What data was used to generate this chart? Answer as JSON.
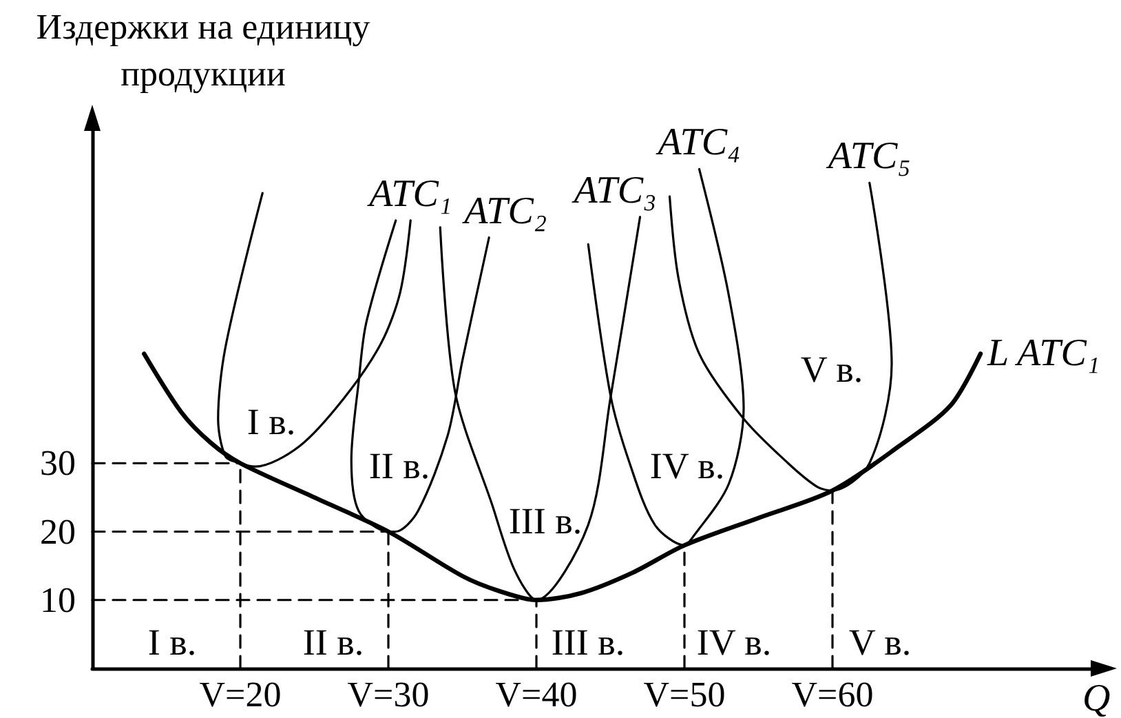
{
  "chart_data": {
    "type": "line",
    "ylabel": "Издержки на единицу продукции",
    "xlabel": "Q",
    "xlim": [
      10,
      78
    ],
    "ylim": [
      0,
      80
    ],
    "xticks": [
      {
        "value": 20,
        "label": "V=20"
      },
      {
        "value": 30,
        "label": "V=30"
      },
      {
        "value": 40,
        "label": "V=40"
      },
      {
        "value": 50,
        "label": "V=50"
      },
      {
        "value": 60,
        "label": "V=60"
      }
    ],
    "yticks": [
      10,
      20,
      30
    ],
    "grid": false,
    "legend": false,
    "marker": "none",
    "line_style": "solid",
    "series": [
      {
        "name": "L ATC₁",
        "color": "#000000",
        "x": [
          13.5,
          16,
          18,
          20,
          25,
          30,
          35,
          37.5,
          40,
          43,
          46.5,
          50,
          55,
          60,
          64.5,
          68,
          70
        ],
        "values": [
          46,
          37.5,
          33,
          30,
          25,
          20,
          13.5,
          11.3,
          10,
          11,
          14,
          18,
          22,
          26,
          32.5,
          38.5,
          46
        ]
      },
      {
        "name": "ATC₁",
        "color": "#000000",
        "x": [
          21.5,
          19,
          18.5,
          19,
          20,
          21,
          24,
          27,
          29.5,
          30.8,
          31.5
        ],
        "values": [
          69.5,
          47,
          36.5,
          31,
          30,
          29.5,
          32.5,
          39.5,
          47.5,
          55,
          65.5
        ]
      },
      {
        "name": "ATC₂",
        "color": "#000000",
        "x": [
          30.5,
          28.5,
          28,
          27.5,
          28,
          30,
          30.5,
          32,
          34,
          35,
          36.8
        ],
        "values": [
          65.5,
          50.5,
          42,
          30.5,
          23,
          20,
          20,
          23,
          34,
          45,
          63
        ]
      },
      {
        "name": "ATC₃",
        "color": "#000000",
        "x": [
          33.5,
          34.5,
          37,
          38.5,
          40,
          43.5,
          45,
          47
        ],
        "values": [
          64.5,
          40.5,
          24,
          14.5,
          10,
          21,
          39.5,
          66
        ]
      },
      {
        "name": "ATC₄",
        "color": "#000000",
        "x": [
          43.5,
          45,
          46.3,
          48,
          50,
          50.5,
          53,
          54,
          53,
          51
        ],
        "values": [
          62,
          40,
          30,
          21,
          18,
          19,
          27,
          38,
          54.5,
          73
        ]
      },
      {
        "name": "ATC₅",
        "color": "#000000",
        "x": [
          49,
          49.6,
          51,
          54,
          57,
          59,
          60,
          62.5,
          64,
          62.5
        ],
        "values": [
          69,
          57,
          46,
          36.5,
          30,
          26.5,
          26,
          30,
          44.5,
          71
        ]
      },
      {
        "color": "#000000",
        "line_style": "dashed",
        "x": [
          10,
          20
        ],
        "values": [
          30,
          30
        ]
      },
      {
        "color": "#000000",
        "line_style": "dashed",
        "x": [
          20,
          20
        ],
        "values": [
          0,
          30
        ]
      },
      {
        "color": "#000000",
        "line_style": "dashed",
        "x": [
          10,
          30
        ],
        "values": [
          20,
          20
        ]
      },
      {
        "color": "#000000",
        "line_style": "dashed",
        "x": [
          30,
          30
        ],
        "values": [
          0,
          20
        ]
      },
      {
        "color": "#000000",
        "line_style": "dashed",
        "x": [
          10,
          40
        ],
        "values": [
          10,
          10
        ]
      },
      {
        "color": "#000000",
        "line_style": "dashed",
        "x": [
          40,
          40
        ],
        "values": [
          0,
          10
        ]
      },
      {
        "color": "#000000",
        "line_style": "dashed",
        "x": [
          50,
          50
        ],
        "values": [
          0,
          18
        ]
      },
      {
        "color": "#000000",
        "line_style": "dashed",
        "x": [
          60,
          60
        ],
        "values": [
          0,
          26
        ]
      }
    ],
    "annotations": [
      "I в.",
      "II в.",
      "III в.",
      "IV в.",
      "V в.",
      "I в.",
      "II в.",
      "III в.",
      "IV в.",
      "V в."
    ]
  }
}
